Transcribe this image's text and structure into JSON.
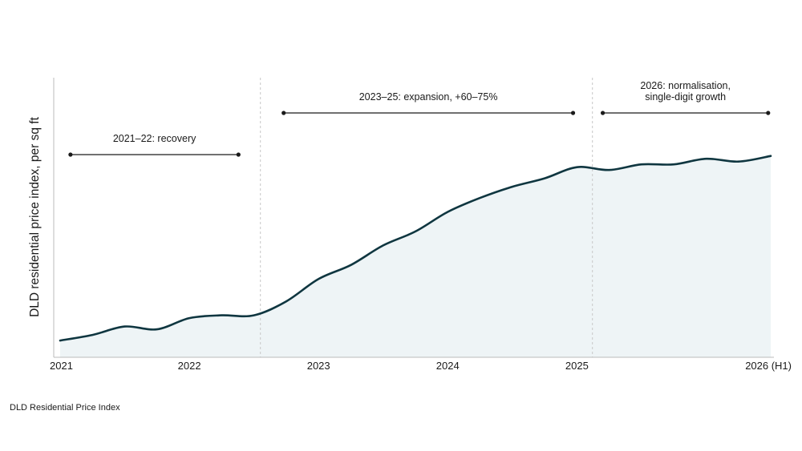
{
  "chart_data": {
    "type": "area",
    "title": "",
    "xlabel": "",
    "ylabel": "DLD residential price index, per sq ft",
    "x_ticks": [
      "2021",
      "2022",
      "2023",
      "2024",
      "2025",
      "2026 (H1)"
    ],
    "xlim": [
      2021.0,
      2026.5
    ],
    "ylim": [
      0,
      100
    ],
    "grid": false,
    "series": [
      {
        "x": [
          2021.0,
          2021.25,
          2021.5,
          2021.75,
          2022.0,
          2022.25,
          2022.5,
          2022.75,
          2023.0,
          2023.25,
          2023.5,
          2023.75,
          2024.0,
          2024.25,
          2024.5,
          2024.75,
          2025.0,
          2025.25,
          2025.5,
          2025.75,
          2026.0,
          2026.25,
          2026.5
        ],
        "y": [
          6,
          8,
          11,
          10,
          14,
          15,
          15,
          20,
          28,
          33,
          40,
          45,
          52,
          57,
          61,
          64,
          68,
          67,
          69,
          69,
          71,
          70,
          72
        ]
      }
    ],
    "phases": [
      {
        "label": "2021–22: recovery",
        "start": 2021.08,
        "end": 2022.38,
        "boundary": 2022.55
      },
      {
        "label": "2023–25: expansion, +60–75%",
        "start": 2022.73,
        "end": 2024.97,
        "boundary": 2025.12
      },
      {
        "label": "2026: normalisation, single-digit growth",
        "start": 2025.2,
        "end": 2026.48,
        "boundary": null
      }
    ],
    "colors": {
      "line": "#0f3640",
      "fill": "#eef4f6",
      "axis": "#bbbbbb",
      "divider": "#c8c8c8"
    }
  },
  "source_label": "DLD Residential Price Index"
}
